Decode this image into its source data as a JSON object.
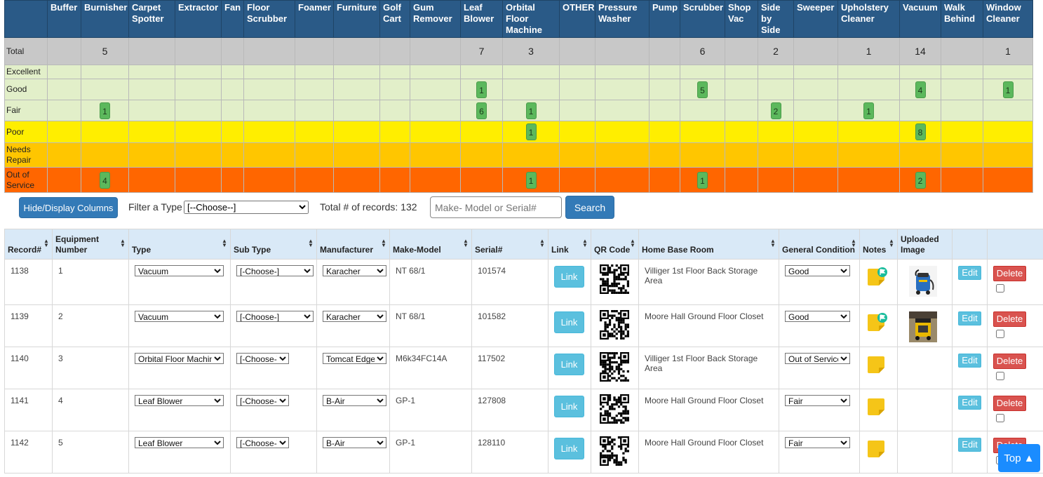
{
  "summary": {
    "columns": [
      "Buffer",
      "Burnisher",
      "Carpet Spotter",
      "Extractor",
      "Fan",
      "Floor Scrubber",
      "Foamer",
      "Furniture",
      "Golf Cart",
      "Gum Remover",
      "Leaf Blower",
      "Orbital Floor Machine",
      "OTHER",
      "Pressure Washer",
      "Pump",
      "Scrubber",
      "Shop Vac",
      "Side by Side",
      "Sweeper",
      "Upholstery Cleaner",
      "Vacuum",
      "Walk Behind",
      "Window Cleaner"
    ],
    "rows": [
      {
        "label": "Total",
        "cls": "total",
        "cells": [
          "",
          "5",
          "",
          "",
          "",
          "",
          "",
          "",
          "",
          "",
          "7",
          "3",
          "",
          "",
          "",
          "6",
          "",
          "2",
          "",
          "1",
          "14",
          "",
          "1"
        ]
      },
      {
        "label": "Excellent",
        "cls": "excellent",
        "cells": [
          "",
          "",
          "",
          "",
          "",
          "",
          "",
          "",
          "",
          "",
          "",
          "",
          "",
          "",
          "",
          "",
          "",
          "",
          "",
          "",
          "",
          "",
          ""
        ]
      },
      {
        "label": "Good",
        "cls": "good",
        "cells": [
          "",
          "",
          "",
          "",
          "",
          "",
          "",
          "",
          "",
          "",
          "1",
          "",
          "",
          "",
          "",
          "5",
          "",
          "",
          "",
          "",
          "4",
          "",
          "1"
        ]
      },
      {
        "label": "Fair",
        "cls": "fair",
        "cells": [
          "",
          "1",
          "",
          "",
          "",
          "",
          "",
          "",
          "",
          "",
          "6",
          "1",
          "",
          "",
          "",
          "",
          "",
          "2",
          "",
          "1",
          "",
          "",
          ""
        ]
      },
      {
        "label": "Poor",
        "cls": "poor",
        "cells": [
          "",
          "",
          "",
          "",
          "",
          "",
          "",
          "",
          "",
          "",
          "",
          "1",
          "",
          "",
          "",
          "",
          "",
          "",
          "",
          "",
          "8",
          "",
          ""
        ]
      },
      {
        "label": "Needs Repair",
        "cls": "repair",
        "cells": [
          "",
          "",
          "",
          "",
          "",
          "",
          "",
          "",
          "",
          "",
          "",
          "",
          "",
          "",
          "",
          "",
          "",
          "",
          "",
          "",
          "",
          "",
          ""
        ]
      },
      {
        "label": "Out of Service",
        "cls": "out",
        "cells": [
          "",
          "4",
          "",
          "",
          "",
          "",
          "",
          "",
          "",
          "",
          "",
          "1",
          "",
          "",
          "",
          "1",
          "",
          "",
          "",
          "",
          "2",
          "",
          ""
        ]
      }
    ]
  },
  "controls": {
    "hide_display_label": "Hide/Display Columns",
    "filter_label": "Filter a Type",
    "filter_selected": "[--Choose--]",
    "records_label": "Total # of records: 132",
    "search_placeholder": "Make- Model or Serial#",
    "search_label": "Search"
  },
  "grid": {
    "headers": [
      "Record#",
      "Equipment Number",
      "Type",
      "Sub Type",
      "Manufacturer",
      "Make-Model",
      "Serial#",
      "Link",
      "QR Code",
      "Home Base Room",
      "General Condition",
      "Notes",
      "Uploaded Image",
      "",
      ""
    ],
    "sortable": [
      true,
      true,
      true,
      true,
      true,
      true,
      true,
      true,
      true,
      true,
      true,
      true,
      false,
      false,
      false
    ],
    "rows": [
      {
        "record": "1138",
        "equip": "1",
        "type": "Vacuum",
        "subtype": "[-Choose-]",
        "manufacturer": "Karacher",
        "model": "NT 68/1",
        "serial": "101574",
        "link": "Link",
        "room": "Villiger 1st Floor Back Storage Area",
        "condition": "Good",
        "note_flag": true,
        "image": "blue-vacuum",
        "edit": "Edit",
        "delete": "Delete"
      },
      {
        "record": "1139",
        "equip": "2",
        "type": "Vacuum",
        "subtype": "[-Choose-]",
        "manufacturer": "Karacher",
        "model": "NT 68/1",
        "serial": "101582",
        "link": "Link",
        "room": "Moore Hall Ground Floor Closet",
        "condition": "Good",
        "note_flag": true,
        "image": "yellow-vacuum",
        "edit": "Edit",
        "delete": "Delete"
      },
      {
        "record": "1140",
        "equip": "3",
        "type": "Orbital Floor Machine",
        "subtype": "[-Choose-]",
        "manufacturer": "Tomcat Edge",
        "model": "M6k34FC14A",
        "serial": "117502",
        "link": "Link",
        "room": "Villiger 1st Floor Back Storage Area",
        "condition": "Out of Service",
        "note_flag": false,
        "image": "",
        "edit": "Edit",
        "delete": "Delete"
      },
      {
        "record": "1141",
        "equip": "4",
        "type": "Leaf Blower",
        "subtype": "[-Choose-]",
        "manufacturer": "B-Air",
        "model": "GP-1",
        "serial": "127808",
        "link": "Link",
        "room": "Moore Hall Ground Floor Closet",
        "condition": "Fair",
        "note_flag": false,
        "image": "",
        "edit": "Edit",
        "delete": "Delete"
      },
      {
        "record": "1142",
        "equip": "5",
        "type": "Leaf Blower",
        "subtype": "[-Choose-]",
        "manufacturer": "B-Air",
        "model": "GP-1",
        "serial": "128110",
        "link": "Link",
        "room": "Moore Hall Ground Floor Closet",
        "condition": "Fair",
        "note_flag": false,
        "image": "",
        "edit": "Edit",
        "delete": "Delete"
      }
    ]
  },
  "top_button_label": "Top ▲",
  "colors": {
    "header_blue": "#2a5a87",
    "total_gray": "#c8c8c8",
    "good_green": "#e2efc9",
    "poor_yellow": "#ffee00",
    "repair_amber": "#ffc600",
    "out_orange": "#ff6600",
    "badge_green": "#5cb85c",
    "primary_blue": "#337ab7",
    "info_cyan": "#5bc0de",
    "danger_red": "#d9534f"
  }
}
